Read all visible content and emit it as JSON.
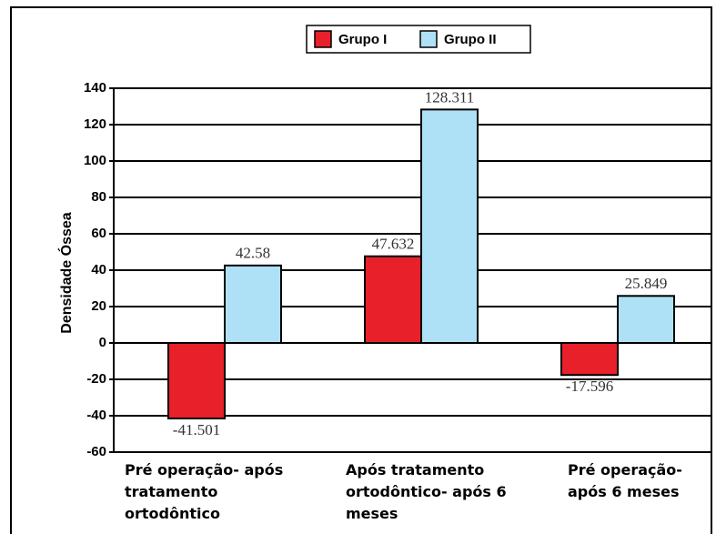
{
  "chart_data": {
    "type": "bar",
    "y_label": "Densidade Óssea",
    "categories": [
      "Pré operação- após tratamento ortodôntico",
      "Após tratamento ortodôntico- após 6 meses",
      "Pré operação- após 6 meses"
    ],
    "series": [
      {
        "name": "Grupo I",
        "color": "#e8202a",
        "values": [
          -41.501,
          47.632,
          -17.596
        ]
      },
      {
        "name": "Grupo II",
        "color": "#aee1f6",
        "values": [
          42.58,
          128.311,
          25.849
        ]
      }
    ],
    "ylim": [
      -60,
      140
    ],
    "yticks": [
      -60,
      -40,
      -20,
      0,
      20,
      40,
      60,
      80,
      100,
      120,
      140
    ],
    "grid": true,
    "legend": "top"
  }
}
